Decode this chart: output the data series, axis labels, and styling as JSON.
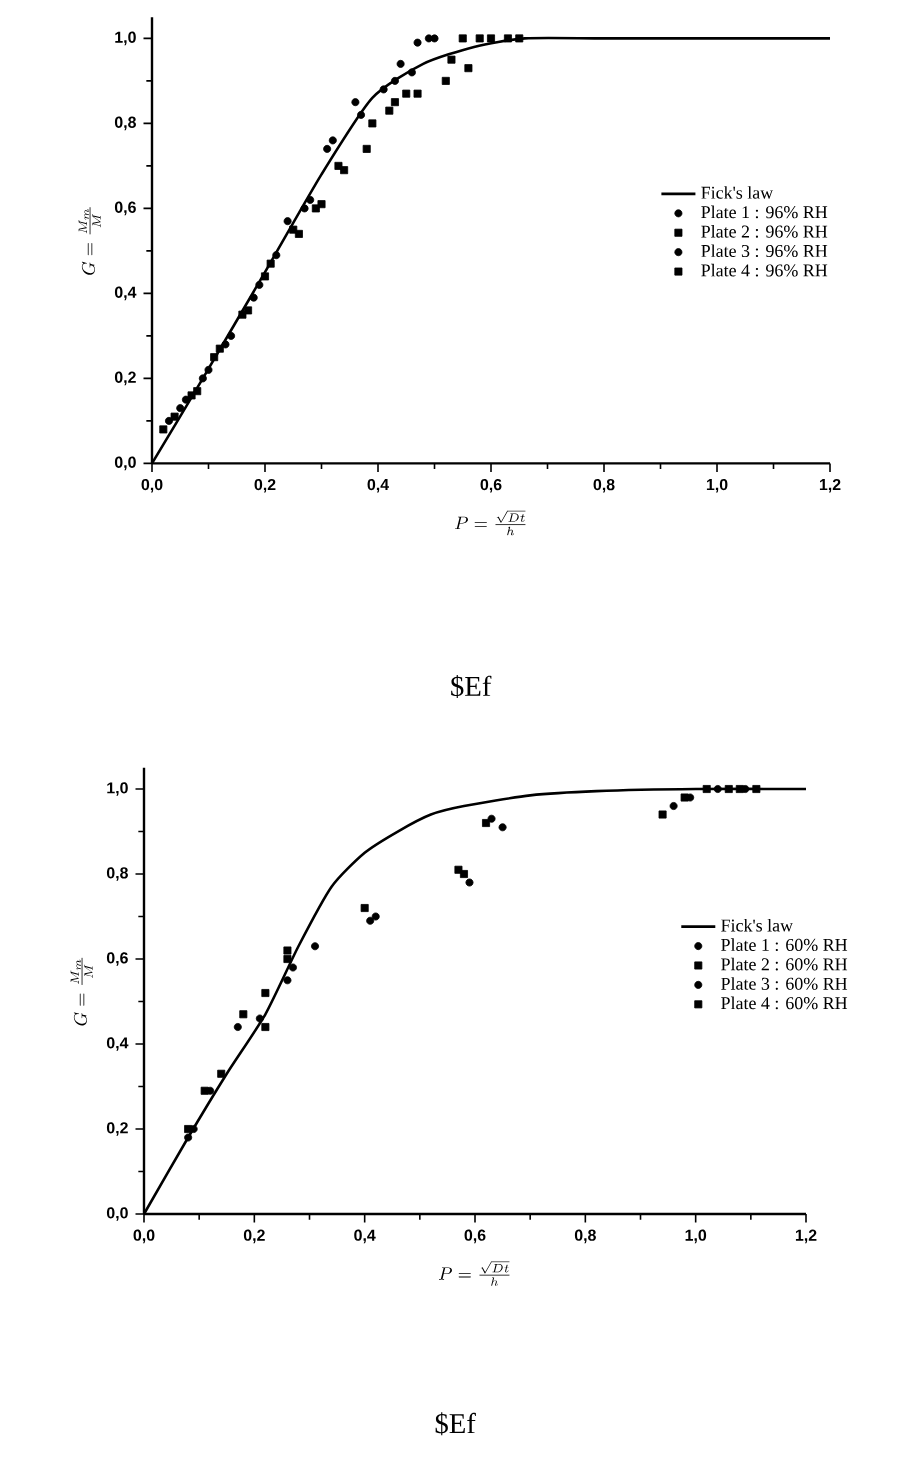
{
  "chart_data": [
    {
      "type": "scatter",
      "xlabel": "P = \\frac{\\sqrt{Dt}}{h}",
      "ylabel": "G = \\frac{M_m}{M}",
      "xlim": [
        0,
        1.2
      ],
      "ylim": [
        0,
        1.05
      ],
      "legend": "right",
      "annotations": [
        "$Ef"
      ],
      "xticks": [
        {
          "value": 0,
          "label": "0,0"
        },
        {
          "value": 0.2,
          "label": "0,2"
        },
        {
          "value": 0.4,
          "label": "0,4"
        },
        {
          "value": 0.6,
          "label": "0,6"
        },
        {
          "value": 0.8,
          "label": "0,8"
        },
        {
          "value": 1.0,
          "label": "1,0"
        },
        {
          "value": 1.2,
          "label": "1,2"
        }
      ],
      "yticks": [
        {
          "value": 0,
          "label": "0,0"
        },
        {
          "value": 0.2,
          "label": "0,2"
        },
        {
          "value": 0.4,
          "label": "0,4"
        },
        {
          "value": 0.6,
          "label": "0,6"
        },
        {
          "value": 0.8,
          "label": "0,8"
        },
        {
          "value": 1.0,
          "label": "1,0"
        }
      ],
      "series": [
        {
          "name": "Fick's law",
          "type": "line",
          "color": "#000000",
          "marker": "none",
          "x": [
            0,
            0.09,
            0.2,
            0.3,
            0.39,
            0.48,
            0.57,
            0.66,
            0.8,
            1.0,
            1.2
          ],
          "values": [
            0,
            0.2,
            0.45,
            0.68,
            0.86,
            0.94,
            0.98,
            1.0,
            1.0,
            1.0,
            1.0
          ]
        },
        {
          "name": "Plate 1 : 96% RH",
          "color": "#000000",
          "marker": "circle",
          "x": [
            0.03,
            0.06,
            0.1,
            0.14,
            0.19,
            0.24,
            0.28,
            0.31,
            0.36,
            0.41,
            0.44,
            0.47,
            0.5
          ],
          "values": [
            0.1,
            0.15,
            0.22,
            0.3,
            0.42,
            0.57,
            0.62,
            0.74,
            0.85,
            0.88,
            0.94,
            0.99,
            1.0
          ]
        },
        {
          "name": "Plate 2 : 96% RH",
          "color": "#000000",
          "marker": "square",
          "x": [
            0.04,
            0.08,
            0.12,
            0.17,
            0.21,
            0.26,
            0.3,
            0.34,
            0.38,
            0.42,
            0.47,
            0.52,
            0.56,
            0.6
          ],
          "values": [
            0.11,
            0.17,
            0.27,
            0.36,
            0.47,
            0.54,
            0.61,
            0.69,
            0.74,
            0.83,
            0.87,
            0.9,
            0.93,
            1.0
          ]
        },
        {
          "name": "Plate 3 : 96% RH",
          "color": "#000000",
          "marker": "circle",
          "x": [
            0.05,
            0.09,
            0.13,
            0.18,
            0.22,
            0.27,
            0.32,
            0.37,
            0.43,
            0.46,
            0.49
          ],
          "values": [
            0.13,
            0.2,
            0.28,
            0.39,
            0.49,
            0.6,
            0.76,
            0.82,
            0.9,
            0.92,
            1.0
          ]
        },
        {
          "name": "Plate 4 : 96% RH",
          "color": "#000000",
          "marker": "square",
          "x": [
            0.02,
            0.07,
            0.11,
            0.16,
            0.2,
            0.25,
            0.29,
            0.33,
            0.39,
            0.43,
            0.45,
            0.53,
            0.55,
            0.58,
            0.63,
            0.65
          ],
          "values": [
            0.08,
            0.16,
            0.25,
            0.35,
            0.44,
            0.55,
            0.6,
            0.7,
            0.8,
            0.85,
            0.87,
            0.95,
            1.0,
            1.0,
            1.0,
            1.0
          ]
        }
      ]
    },
    {
      "type": "scatter",
      "xlabel": "P = \\frac{\\sqrt{Dt}}{h}",
      "ylabel": "G = \\frac{M_m}{M}",
      "xlim": [
        0,
        1.2
      ],
      "ylim": [
        0,
        1.05
      ],
      "legend": "right",
      "annotations": [
        "$Ef"
      ],
      "xticks": [
        {
          "value": 0,
          "label": "0,0"
        },
        {
          "value": 0.2,
          "label": "0,2"
        },
        {
          "value": 0.4,
          "label": "0,4"
        },
        {
          "value": 0.6,
          "label": "0,6"
        },
        {
          "value": 0.8,
          "label": "0,8"
        },
        {
          "value": 1.0,
          "label": "1,0"
        },
        {
          "value": 1.2,
          "label": "1,2"
        }
      ],
      "yticks": [
        {
          "value": 0,
          "label": "0,0"
        },
        {
          "value": 0.2,
          "label": "0,2"
        },
        {
          "value": 0.4,
          "label": "0,4"
        },
        {
          "value": 0.6,
          "label": "0,6"
        },
        {
          "value": 0.8,
          "label": "0,8"
        },
        {
          "value": 1.0,
          "label": "1,0"
        }
      ],
      "series": [
        {
          "name": "Fick's law",
          "type": "line",
          "color": "#000000",
          "marker": "none",
          "x": [
            0,
            0.08,
            0.15,
            0.22,
            0.28,
            0.34,
            0.4,
            0.46,
            0.52,
            0.58,
            0.7,
            0.82,
            1.0,
            1.2
          ],
          "values": [
            0,
            0.18,
            0.33,
            0.47,
            0.63,
            0.77,
            0.85,
            0.9,
            0.94,
            0.96,
            0.985,
            0.995,
            1.0,
            1.0
          ]
        },
        {
          "name": "Plate 1 : 60% RH",
          "color": "#000000",
          "marker": "circle",
          "x": [
            0.08,
            0.12,
            0.17,
            0.26,
            0.41,
            0.59,
            0.63,
            0.99,
            1.04
          ],
          "values": [
            0.18,
            0.29,
            0.44,
            0.55,
            0.69,
            0.78,
            0.93,
            0.98,
            1.0
          ]
        },
        {
          "name": "Plate 2 : 60% RH",
          "color": "#000000",
          "marker": "square",
          "x": [
            0.08,
            0.14,
            0.18,
            0.26,
            0.4,
            0.57,
            0.94,
            1.02,
            1.08
          ],
          "values": [
            0.2,
            0.33,
            0.47,
            0.62,
            0.72,
            0.81,
            0.94,
            1.0,
            1.0
          ]
        },
        {
          "name": "Plate 3 : 60% RH",
          "color": "#000000",
          "marker": "circle",
          "x": [
            0.09,
            0.21,
            0.27,
            0.31,
            0.42,
            0.65,
            0.96,
            1.09
          ],
          "values": [
            0.2,
            0.46,
            0.58,
            0.63,
            0.7,
            0.91,
            0.96,
            1.0
          ]
        },
        {
          "name": "Plate 4 : 60% RH",
          "color": "#000000",
          "marker": "square",
          "x": [
            0.11,
            0.22,
            0.22,
            0.26,
            0.58,
            0.62,
            0.98,
            1.06,
            1.11
          ],
          "values": [
            0.29,
            0.52,
            0.44,
            0.6,
            0.8,
            0.92,
            0.98,
            1.0,
            1.0
          ]
        }
      ]
    }
  ]
}
